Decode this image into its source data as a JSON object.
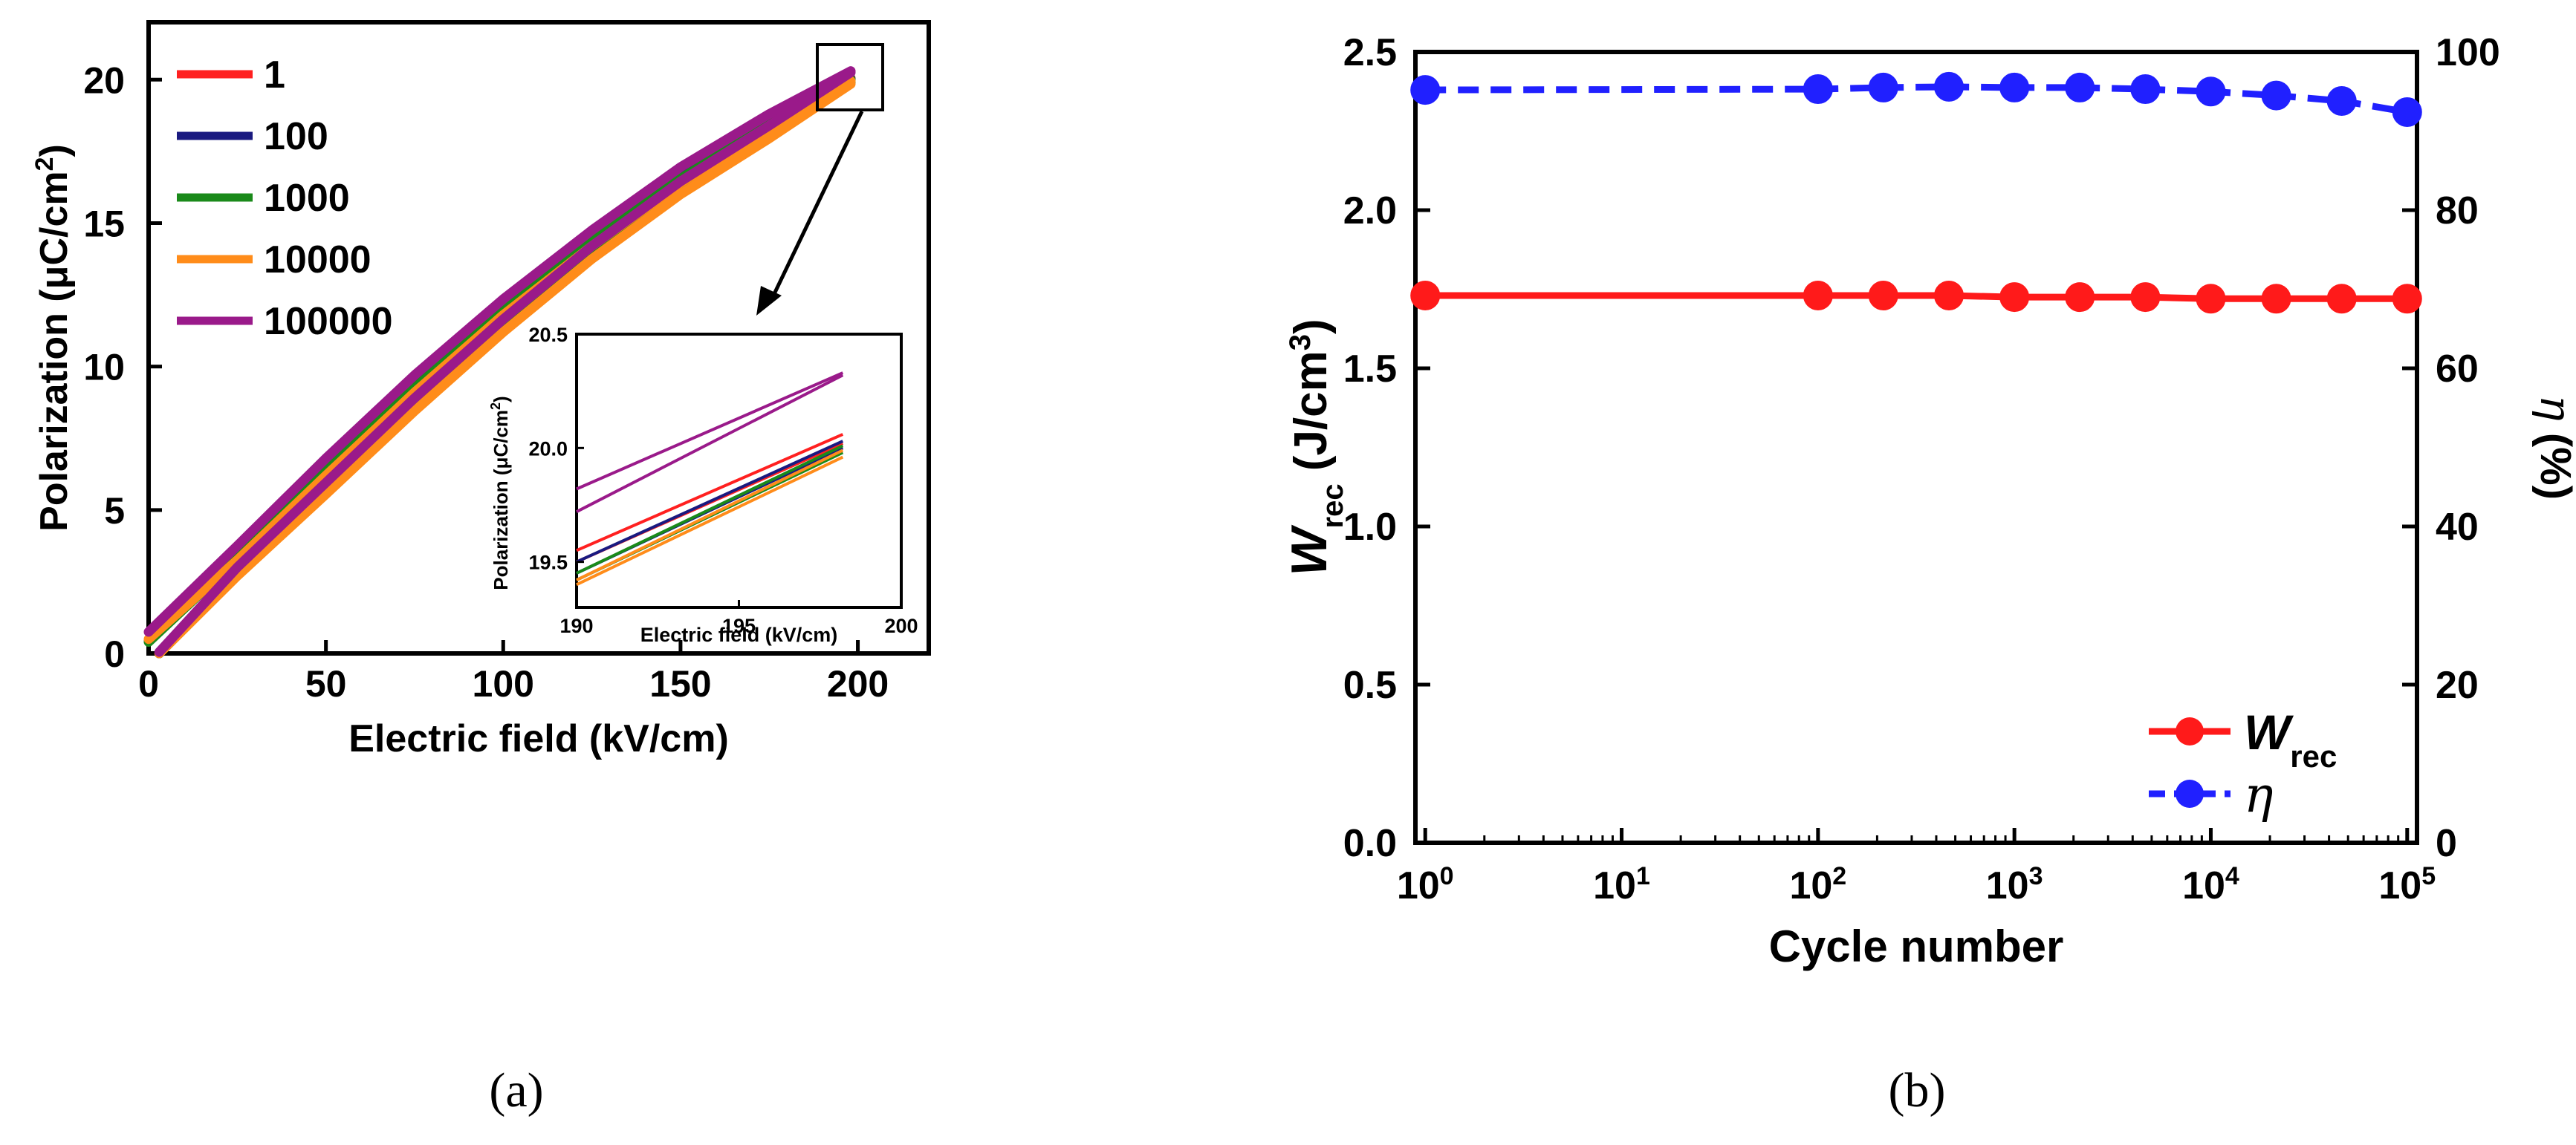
{
  "captions": {
    "a": "(a)",
    "b": "(b)"
  },
  "chart_data": [
    {
      "panel": "a",
      "type": "line",
      "title": "",
      "xlabel": "Electric field (kV/cm)",
      "ylabel": "Polarization (μC/cm²)",
      "ylabel_parts": [
        "Polarization (",
        "μ",
        "C/cm",
        "2",
        ")"
      ],
      "xlim": [
        0,
        220
      ],
      "ylim": [
        0,
        22
      ],
      "xticks": [
        0,
        50,
        100,
        150,
        200
      ],
      "yticks": [
        0,
        5,
        10,
        15,
        20
      ],
      "legend_position": "top-left",
      "series": [
        {
          "name": "1",
          "color": "#ff2020",
          "upper": [
            [
              0,
              0.45
            ],
            [
              25,
              3.4
            ],
            [
              50,
              6.45
            ],
            [
              75,
              9.35
            ],
            [
              100,
              12.05
            ],
            [
              125,
              14.45
            ],
            [
              150,
              16.65
            ],
            [
              175,
              18.55
            ],
            [
              198,
              20.05
            ]
          ],
          "lower": [
            [
              3,
              0
            ],
            [
              25,
              2.85
            ],
            [
              50,
              5.75
            ],
            [
              75,
              8.7
            ],
            [
              100,
              11.45
            ],
            [
              125,
              14.0
            ],
            [
              150,
              16.25
            ],
            [
              175,
              18.2
            ],
            [
              198,
              20.0
            ]
          ]
        },
        {
          "name": "100",
          "color": "#1a1a80",
          "upper": [
            [
              0,
              0.42
            ],
            [
              25,
              3.35
            ],
            [
              50,
              6.4
            ],
            [
              75,
              9.3
            ],
            [
              100,
              12.0
            ],
            [
              125,
              14.4
            ],
            [
              150,
              16.6
            ],
            [
              175,
              18.5
            ],
            [
              198,
              20.02
            ]
          ],
          "lower": [
            [
              3,
              0
            ],
            [
              25,
              2.8
            ],
            [
              50,
              5.7
            ],
            [
              75,
              8.65
            ],
            [
              100,
              11.4
            ],
            [
              125,
              13.95
            ],
            [
              150,
              16.2
            ],
            [
              175,
              18.15
            ],
            [
              198,
              19.95
            ]
          ]
        },
        {
          "name": "1000",
          "color": "#1a8a1a",
          "upper": [
            [
              0,
              0.4
            ],
            [
              25,
              3.3
            ],
            [
              50,
              6.35
            ],
            [
              75,
              9.25
            ],
            [
              100,
              11.95
            ],
            [
              125,
              14.35
            ],
            [
              150,
              16.55
            ],
            [
              175,
              18.45
            ],
            [
              198,
              20.0
            ]
          ],
          "lower": [
            [
              3,
              0
            ],
            [
              25,
              2.75
            ],
            [
              50,
              5.65
            ],
            [
              75,
              8.6
            ],
            [
              100,
              11.35
            ],
            [
              125,
              13.9
            ],
            [
              150,
              16.15
            ],
            [
              175,
              18.1
            ],
            [
              198,
              19.9
            ]
          ]
        },
        {
          "name": "10000",
          "color": "#ff8c1a",
          "upper": [
            [
              0,
              0.5
            ],
            [
              25,
              3.25
            ],
            [
              50,
              6.2
            ],
            [
              75,
              9.1
            ],
            [
              100,
              11.8
            ],
            [
              125,
              14.2
            ],
            [
              150,
              16.4
            ],
            [
              175,
              18.3
            ],
            [
              198,
              19.95
            ]
          ],
          "lower": [
            [
              3,
              0
            ],
            [
              25,
              2.7
            ],
            [
              50,
              5.55
            ],
            [
              75,
              8.45
            ],
            [
              100,
              11.2
            ],
            [
              125,
              13.75
            ],
            [
              150,
              16.0
            ],
            [
              175,
              17.95
            ],
            [
              198,
              19.85
            ]
          ]
        },
        {
          "name": "100000",
          "color": "#9a1a8a",
          "upper": [
            [
              0,
              0.75
            ],
            [
              25,
              3.75
            ],
            [
              50,
              6.8
            ],
            [
              75,
              9.7
            ],
            [
              100,
              12.35
            ],
            [
              125,
              14.75
            ],
            [
              150,
              16.95
            ],
            [
              175,
              18.8
            ],
            [
              198,
              20.3
            ]
          ],
          "lower": [
            [
              3,
              0.05
            ],
            [
              25,
              3.0
            ],
            [
              50,
              5.95
            ],
            [
              75,
              8.9
            ],
            [
              100,
              11.65
            ],
            [
              125,
              14.2
            ],
            [
              150,
              16.45
            ],
            [
              175,
              18.4
            ],
            [
              198,
              20.25
            ]
          ]
        }
      ],
      "inset": {
        "xlabel": "Electric field (kV/cm)",
        "ylabel": "Polarization (μC/cm²)",
        "ylabel_parts": [
          "Polarization (",
          "μ",
          "C/cm",
          "2",
          ")"
        ],
        "xlim": [
          190,
          200
        ],
        "ylim": [
          19.3,
          20.5
        ],
        "xticks": [
          190,
          195,
          200
        ],
        "yticks": [
          19.5,
          20.0,
          20.5
        ],
        "ytick_labels": [
          "19.5",
          "20.0",
          "20.5"
        ],
        "series": [
          {
            "name": "1",
            "color": "#ff2020",
            "upper": [
              [
                190,
                19.55
              ],
              [
                198.2,
                20.06
              ]
            ],
            "lower": [
              [
                190,
                19.5
              ],
              [
                198.2,
                20.02
              ]
            ]
          },
          {
            "name": "100",
            "color": "#1a1a80",
            "upper": [
              [
                190,
                19.5
              ],
              [
                198.2,
                20.03
              ]
            ],
            "lower": [
              [
                190,
                19.45
              ],
              [
                198.2,
                20.0
              ]
            ]
          },
          {
            "name": "1000",
            "color": "#1a8a1a",
            "upper": [
              [
                190,
                19.45
              ],
              [
                198.2,
                20.01
              ]
            ],
            "lower": [
              [
                190,
                19.42
              ],
              [
                198.2,
                19.98
              ]
            ]
          },
          {
            "name": "10000",
            "color": "#ff8c1a",
            "upper": [
              [
                190,
                19.42
              ],
              [
                198.2,
                19.99
              ]
            ],
            "lower": [
              [
                190,
                19.4
              ],
              [
                198.2,
                19.96
              ]
            ]
          },
          {
            "name": "100000",
            "color": "#9a1a8a",
            "upper": [
              [
                190,
                19.82
              ],
              [
                198.2,
                20.33
              ]
            ],
            "lower": [
              [
                190,
                19.72
              ],
              [
                198.2,
                20.32
              ]
            ]
          }
        ]
      }
    },
    {
      "panel": "b",
      "type": "line",
      "title": "",
      "xlabel": "Cycle number",
      "xscale": "log",
      "xlim_exp": [
        -0.05,
        5.05
      ],
      "xtick_exponents": [
        0,
        1,
        2,
        3,
        4,
        5
      ],
      "xtick_base": "10",
      "ylabel_left": "Wrec (J/cm³)",
      "ylabel_left_parts": [
        "W",
        "rec",
        " (J/cm",
        "3",
        ")"
      ],
      "ylim_left": [
        0,
        2.5
      ],
      "yticks_left": [
        "0.0",
        "0.5",
        "1.0",
        "1.5",
        "2.0",
        "2.5"
      ],
      "ylabel_right": "η (%)",
      "ylabel_right_parts": [
        "η",
        " (%)"
      ],
      "ylim_right": [
        0,
        100
      ],
      "yticks_right": [
        "0",
        "20",
        "40",
        "60",
        "80",
        "100"
      ],
      "legend_position": "bottom-right",
      "series": [
        {
          "name": "Wrec",
          "name_parts": [
            "W",
            "rec"
          ],
          "axis": "left",
          "color": "#ff1a1a",
          "line": "solid",
          "x": [
            1,
            100,
            215,
            464,
            1000,
            2154,
            4642,
            10000,
            21544,
            46416,
            100000
          ],
          "y": [
            1.73,
            1.73,
            1.73,
            1.73,
            1.725,
            1.725,
            1.725,
            1.72,
            1.72,
            1.72,
            1.72
          ]
        },
        {
          "name": "η",
          "name_parts": [
            "η",
            ""
          ],
          "axis": "right",
          "color": "#2020ff",
          "line": "dashed",
          "x": [
            1,
            100,
            215,
            464,
            1000,
            2154,
            4642,
            10000,
            21544,
            46416,
            100000
          ],
          "y": [
            95.2,
            95.3,
            95.5,
            95.6,
            95.5,
            95.5,
            95.3,
            95.0,
            94.5,
            93.8,
            92.4
          ]
        }
      ]
    }
  ]
}
